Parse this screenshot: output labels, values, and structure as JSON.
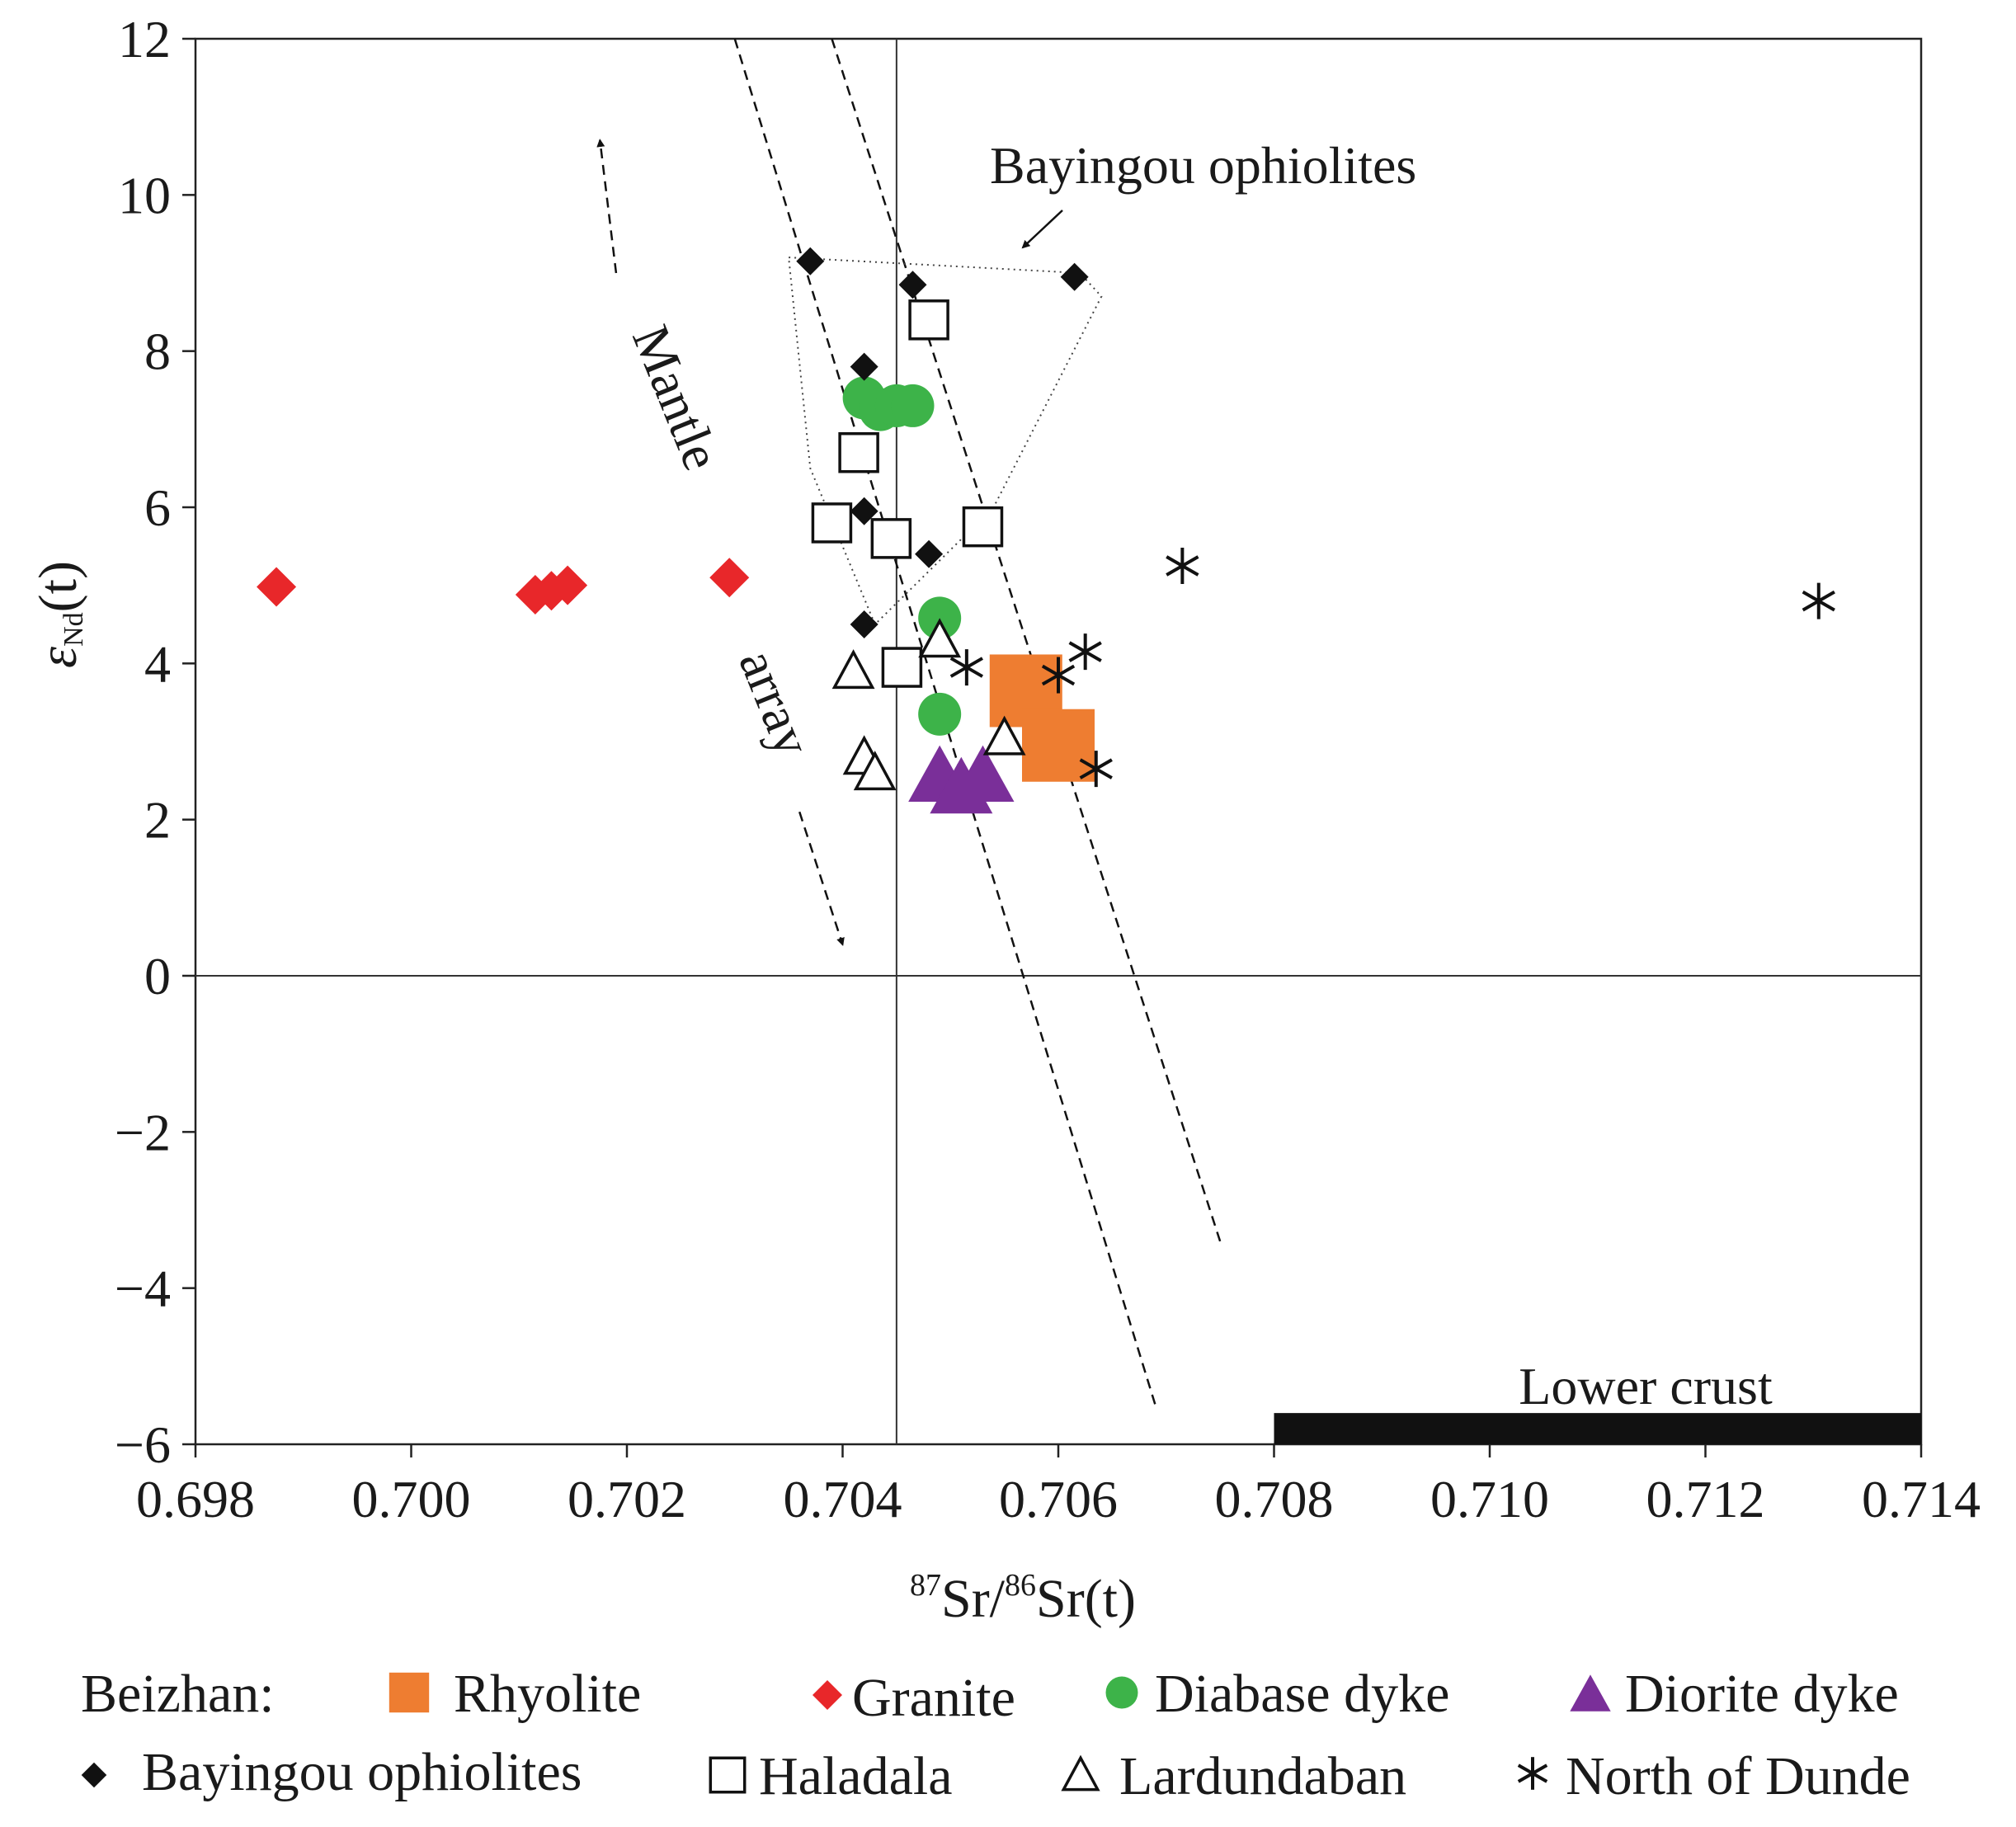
{
  "chart_data": {
    "type": "scatter",
    "xlabel": {
      "sup1": "87",
      "part1": "Sr/",
      "sup2": "86",
      "part2": "Sr(t)"
    },
    "ylabel": {
      "main": "ε",
      "sub": "Nd",
      "suffix": "(t)"
    },
    "xlim": [
      0.698,
      0.714
    ],
    "ylim": [
      -6,
      12
    ],
    "xticks": [
      "0.698",
      "0.700",
      "0.702",
      "0.704",
      "0.706",
      "0.708",
      "0.710",
      "0.712",
      "0.714"
    ],
    "yticks": [
      "12",
      "10",
      "8",
      "6",
      "4",
      "2",
      "0",
      "−2",
      "−4",
      "−6"
    ],
    "reference_lines": {
      "x": 0.7045,
      "y": 0
    },
    "annotations": {
      "mantle_word": "Mantle",
      "array_word": "array",
      "ophiolite_field": "Bayingou ophiolites",
      "lower_crust": "Lower crust"
    },
    "mantle_array": {
      "left_line": [
        [
          0.703,
          12
        ],
        [
          0.7069,
          -5.5
        ]
      ],
      "right_line": [
        [
          0.7039,
          12
        ],
        [
          0.7075,
          -3.4
        ]
      ],
      "arrow_up": [
        [
          0.7019,
          9.0
        ],
        [
          0.70175,
          10.7
        ]
      ],
      "arrow_down": [
        [
          0.7036,
          2.1
        ],
        [
          0.704,
          0.4
        ]
      ]
    },
    "ophiolite_field_polygon": [
      [
        0.7035,
        9.2
      ],
      [
        0.7062,
        9.0
      ],
      [
        0.7064,
        8.7
      ],
      [
        0.7054,
        6.0
      ],
      [
        0.7043,
        4.5
      ],
      [
        0.7037,
        6.5
      ]
    ],
    "lower_crust_bar": {
      "x": [
        0.708,
        0.714
      ],
      "y": [
        -6,
        -5.6
      ]
    },
    "legend": {
      "group_label": "Beizhan:",
      "items": [
        {
          "label": "Rhyolite"
        },
        {
          "label": "Granite"
        },
        {
          "label": "Diabase dyke"
        },
        {
          "label": "Diorite dyke"
        },
        {
          "label": "Bayingou ophiolites"
        },
        {
          "label": "Haladala"
        },
        {
          "label": "Lardundaban"
        },
        {
          "label": "North of Dunde"
        }
      ]
    },
    "series": [
      {
        "name": "Rhyolite",
        "marker": "square-filled",
        "color": "#EE7D31",
        "points": [
          [
            0.7057,
            3.65
          ],
          [
            0.706,
            2.95
          ]
        ]
      },
      {
        "name": "Granite",
        "marker": "diamond-filled",
        "color": "#E8272A",
        "points": [
          [
            0.69875,
            4.98
          ],
          [
            0.70115,
            4.88
          ],
          [
            0.7013,
            4.93
          ],
          [
            0.70145,
            5.0
          ],
          [
            0.70295,
            5.1
          ]
        ]
      },
      {
        "name": "Diabase dyke",
        "marker": "circle-filled",
        "color": "#3DB349",
        "points": [
          [
            0.7042,
            7.4
          ],
          [
            0.70435,
            7.25
          ],
          [
            0.7045,
            7.3
          ],
          [
            0.70465,
            7.3
          ],
          [
            0.7049,
            4.58
          ],
          [
            0.7049,
            3.35
          ]
        ]
      },
      {
        "name": "Diorite dyke",
        "marker": "triangle-filled",
        "color": "#7A2F99",
        "points": [
          [
            0.7049,
            2.55
          ],
          [
            0.7051,
            2.4
          ],
          [
            0.7053,
            2.55
          ]
        ]
      },
      {
        "name": "Bayingou ophiolites",
        "marker": "diamond-small",
        "color": "#111111",
        "points": [
          [
            0.7037,
            9.15
          ],
          [
            0.70465,
            8.85
          ],
          [
            0.70615,
            8.95
          ],
          [
            0.7042,
            7.8
          ],
          [
            0.7042,
            5.95
          ],
          [
            0.7048,
            5.4
          ],
          [
            0.7042,
            4.5
          ]
        ]
      },
      {
        "name": "Haladala",
        "marker": "square-open",
        "color": "#111111",
        "points": [
          [
            0.7048,
            8.4
          ],
          [
            0.70415,
            6.7
          ],
          [
            0.7039,
            5.8
          ],
          [
            0.70445,
            5.6
          ],
          [
            0.7053,
            5.75
          ],
          [
            0.70455,
            3.95
          ]
        ]
      },
      {
        "name": "Lardundaban",
        "marker": "triangle-open",
        "color": "#111111",
        "points": [
          [
            0.7049,
            4.3
          ],
          [
            0.7041,
            3.9
          ],
          [
            0.7042,
            2.8
          ],
          [
            0.7043,
            2.6
          ],
          [
            0.7055,
            3.05
          ]
        ]
      },
      {
        "name": "North of Dunde",
        "marker": "asterisk",
        "color": "#111111",
        "points": [
          [
            0.70715,
            5.25
          ],
          [
            0.70515,
            3.95
          ],
          [
            0.706,
            3.85
          ],
          [
            0.70625,
            4.15
          ],
          [
            0.70635,
            2.65
          ],
          [
            0.71305,
            4.8
          ]
        ]
      }
    ]
  }
}
